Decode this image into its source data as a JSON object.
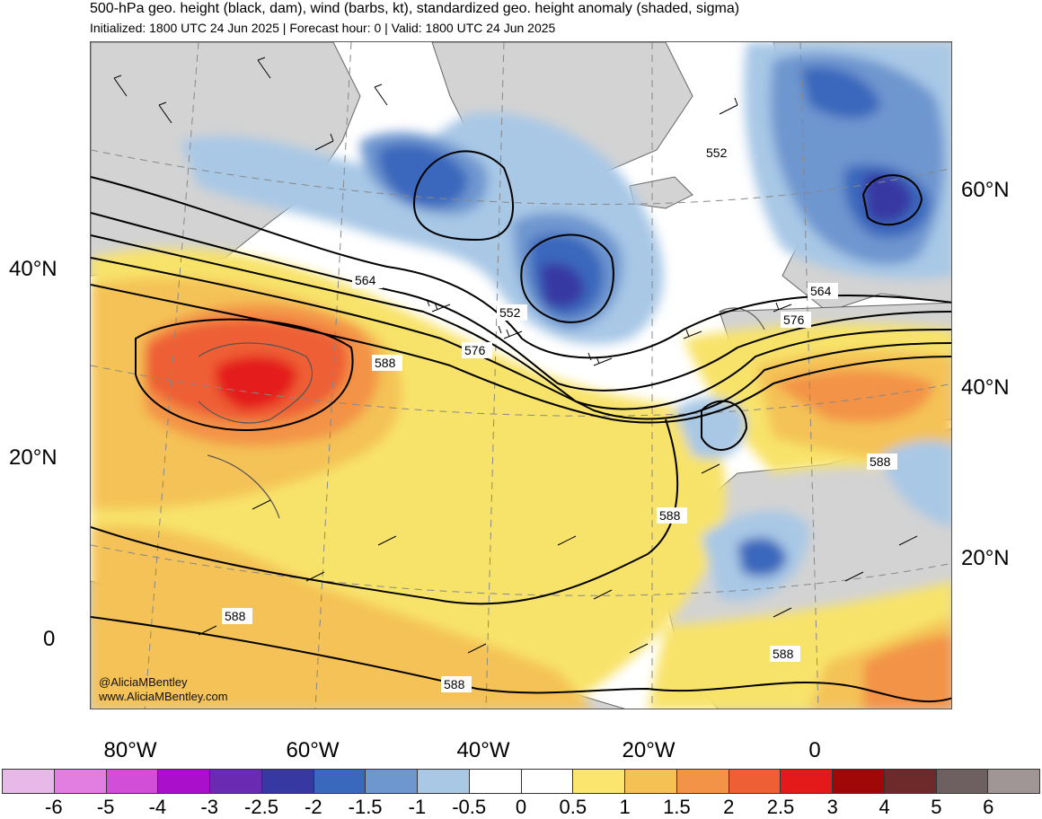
{
  "header": {
    "title": "500-hPa geo. height (black, dam), wind (barbs, kt), standardized geo. height anomaly (shaded, sigma)",
    "subtitle": "Initialized: 1800 UTC 24 Jun 2025 | Forecast hour: 0 | Valid: 1800 UTC 24 Jun 2025"
  },
  "axes": {
    "lat_left": [
      "40°N",
      "20°N",
      "0"
    ],
    "lat_right": [
      "60°N",
      "40°N",
      "20°N"
    ],
    "lon_bottom": [
      "80°W",
      "60°W",
      "40°W",
      "20°W",
      "0"
    ]
  },
  "contour_labels": [
    "552",
    "564",
    "552",
    "576",
    "588",
    "564",
    "576",
    "588",
    "588",
    "588",
    "588",
    "588"
  ],
  "credits": [
    "@AliciaMBentley",
    "www.AliciaMBentley.com"
  ],
  "colorbar": {
    "colors": [
      "#e8b8e8",
      "#e27ee2",
      "#d24ed8",
      "#aa10cc",
      "#6a2ab2",
      "#3838a2",
      "#3a68bc",
      "#6e96cf",
      "#a8c8e6",
      "#ffffff",
      "#ffffff",
      "#fbe56e",
      "#f5c155",
      "#f39347",
      "#ee5f35",
      "#e41a1a",
      "#a00808",
      "#6e2a2a",
      "#6e6060",
      "#a09696"
    ],
    "ticks": [
      "-6",
      "-5",
      "-4",
      "-3",
      "-2.5",
      "-2",
      "-1.5",
      "-1",
      "-0.5",
      "0",
      "0.5",
      "1",
      "1.5",
      "2",
      "2.5",
      "3",
      "4",
      "5",
      "6"
    ]
  },
  "colors": {
    "land_gray": "#d3d3d3",
    "ocean_white": "#ffffff",
    "contour": "#000000",
    "coast": "#555555"
  }
}
